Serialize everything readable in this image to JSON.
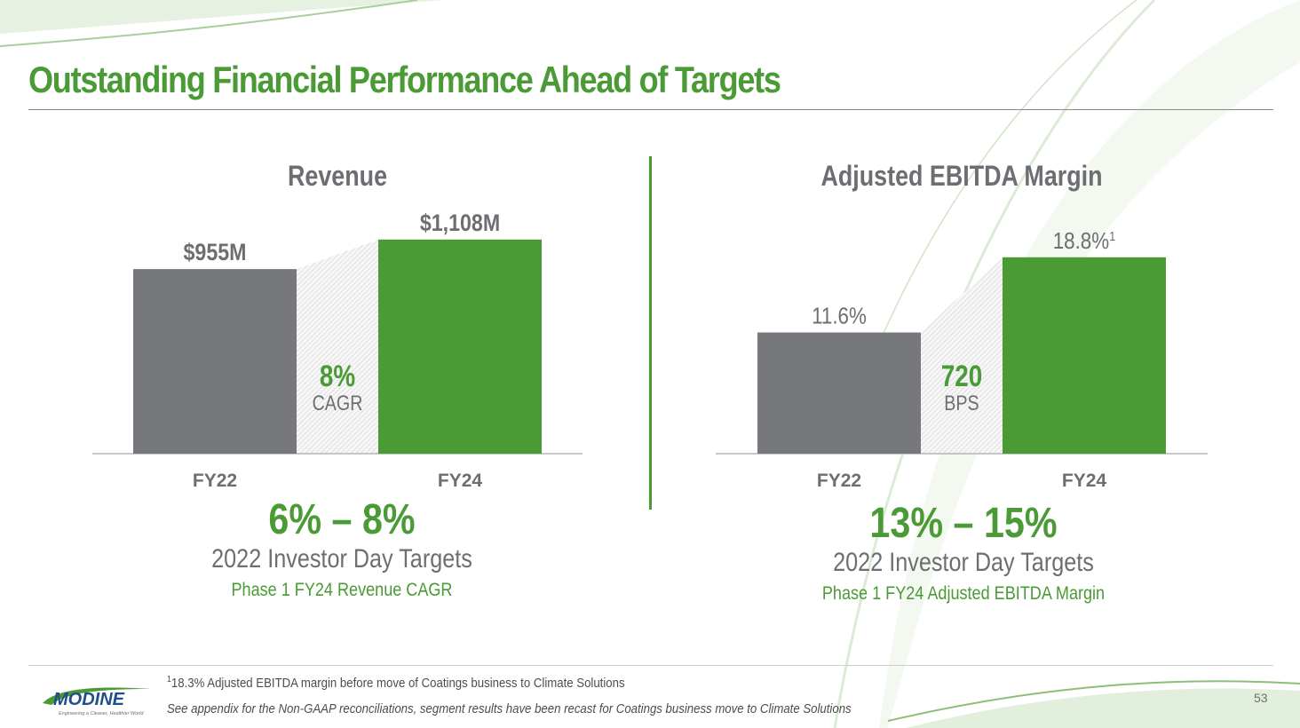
{
  "page": {
    "title": "Outstanding Financial Performance Ahead of Targets",
    "page_number": "53",
    "colors": {
      "green": "#4a9a35",
      "gray_bar": "#77787b",
      "text_gray": "#6d6e71"
    }
  },
  "charts": {
    "revenue": {
      "title": "Revenue",
      "growth_value": "8%",
      "growth_label": "CAGR"
    },
    "ebitda": {
      "title": "Adjusted EBITDA Margin",
      "growth_value": "720",
      "growth_label": "BPS",
      "fy24_footnote_mark": "1"
    }
  },
  "targets": {
    "revenue": {
      "range": "6% – 8%",
      "subtitle": "2022 Investor Day Targets",
      "phase": "Phase 1 FY24 Revenue CAGR"
    },
    "ebitda": {
      "range": "13% – 15%",
      "subtitle": "2022 Investor Day Targets",
      "phase": "Phase 1 FY24 Adjusted EBITDA Margin"
    }
  },
  "footer": {
    "footnote_mark": "1",
    "footnote_text": "18.3% Adjusted EBITDA margin before move of Coatings business to Climate Solutions",
    "appendix_note": "See appendix for the Non-GAAP reconciliations, segment results have been recast for Coatings business move to Climate Solutions",
    "logo_text": "MODINE",
    "logo_tagline": "Engineering a Cleaner, Healthier World"
  },
  "chart_data": [
    {
      "type": "bar",
      "title": "Revenue",
      "categories": [
        "FY22",
        "FY24"
      ],
      "values": [
        955,
        1108
      ],
      "value_labels": [
        "$955M",
        "$1,108M"
      ],
      "units": "$M",
      "annotation": "8% CAGR",
      "ylim": [
        0,
        1300
      ]
    },
    {
      "type": "bar",
      "title": "Adjusted EBITDA Margin",
      "categories": [
        "FY22",
        "FY24"
      ],
      "values": [
        11.6,
        18.8
      ],
      "value_labels": [
        "11.6%",
        "18.8%"
      ],
      "units": "%",
      "annotation": "720 BPS",
      "ylim": [
        0,
        21.5
      ]
    }
  ]
}
